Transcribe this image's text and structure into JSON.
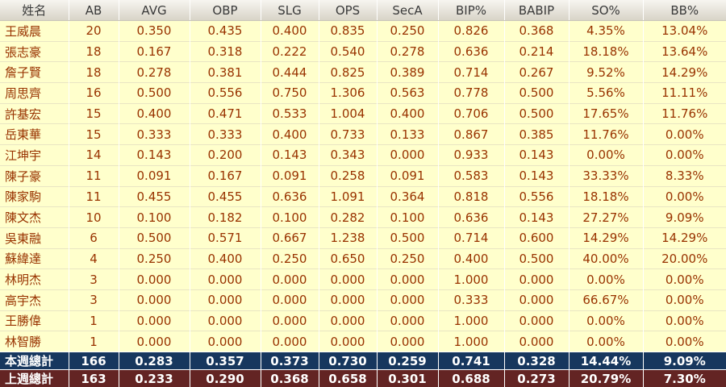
{
  "chart_data": {
    "type": "table",
    "columns": [
      "姓名",
      "AB",
      "AVG",
      "OBP",
      "SLG",
      "OPS",
      "SecA",
      "BIP%",
      "BABIP",
      "SO%",
      "BB%"
    ],
    "rows": [
      [
        "王威晨",
        "20",
        "0.350",
        "0.435",
        "0.400",
        "0.835",
        "0.250",
        "0.826",
        "0.368",
        "4.35%",
        "13.04%"
      ],
      [
        "張志豪",
        "18",
        "0.167",
        "0.318",
        "0.222",
        "0.540",
        "0.278",
        "0.636",
        "0.214",
        "18.18%",
        "13.64%"
      ],
      [
        "詹子賢",
        "18",
        "0.278",
        "0.381",
        "0.444",
        "0.825",
        "0.389",
        "0.714",
        "0.267",
        "9.52%",
        "14.29%"
      ],
      [
        "周思齊",
        "16",
        "0.500",
        "0.556",
        "0.750",
        "1.306",
        "0.563",
        "0.778",
        "0.500",
        "5.56%",
        "11.11%"
      ],
      [
        "許基宏",
        "15",
        "0.400",
        "0.471",
        "0.533",
        "1.004",
        "0.400",
        "0.706",
        "0.500",
        "17.65%",
        "11.76%"
      ],
      [
        "岳東華",
        "15",
        "0.333",
        "0.333",
        "0.400",
        "0.733",
        "0.133",
        "0.867",
        "0.385",
        "11.76%",
        "0.00%"
      ],
      [
        "江坤宇",
        "14",
        "0.143",
        "0.200",
        "0.143",
        "0.343",
        "0.000",
        "0.933",
        "0.143",
        "0.00%",
        "0.00%"
      ],
      [
        "陳子豪",
        "11",
        "0.091",
        "0.167",
        "0.091",
        "0.258",
        "0.091",
        "0.583",
        "0.143",
        "33.33%",
        "8.33%"
      ],
      [
        "陳家駒",
        "11",
        "0.455",
        "0.455",
        "0.636",
        "1.091",
        "0.364",
        "0.818",
        "0.556",
        "18.18%",
        "0.00%"
      ],
      [
        "陳文杰",
        "10",
        "0.100",
        "0.182",
        "0.100",
        "0.282",
        "0.100",
        "0.636",
        "0.143",
        "27.27%",
        "9.09%"
      ],
      [
        "吳東融",
        "6",
        "0.500",
        "0.571",
        "0.667",
        "1.238",
        "0.500",
        "0.714",
        "0.600",
        "14.29%",
        "14.29%"
      ],
      [
        "蘇緯達",
        "4",
        "0.250",
        "0.400",
        "0.250",
        "0.650",
        "0.250",
        "0.400",
        "0.500",
        "40.00%",
        "20.00%"
      ],
      [
        "林明杰",
        "3",
        "0.000",
        "0.000",
        "0.000",
        "0.000",
        "0.000",
        "1.000",
        "0.000",
        "0.00%",
        "0.00%"
      ],
      [
        "高宇杰",
        "3",
        "0.000",
        "0.000",
        "0.000",
        "0.000",
        "0.000",
        "0.333",
        "0.000",
        "66.67%",
        "0.00%"
      ],
      [
        "王勝偉",
        "1",
        "0.000",
        "0.000",
        "0.000",
        "0.000",
        "0.000",
        "1.000",
        "0.000",
        "0.00%",
        "0.00%"
      ],
      [
        "林智勝",
        "1",
        "0.000",
        "0.000",
        "0.000",
        "0.000",
        "0.000",
        "1.000",
        "0.000",
        "0.00%",
        "0.00%"
      ]
    ],
    "totals": [
      {
        "label": "本週總計",
        "values": [
          "166",
          "0.283",
          "0.357",
          "0.373",
          "0.730",
          "0.259",
          "0.741",
          "0.328",
          "14.44%",
          "9.09%"
        ]
      },
      {
        "label": "上週總計",
        "values": [
          "163",
          "0.233",
          "0.290",
          "0.368",
          "0.658",
          "0.301",
          "0.688",
          "0.273",
          "20.79%",
          "7.30%"
        ]
      }
    ]
  },
  "colors": {
    "header_bg_top": "#f7f5f0",
    "header_bg_bottom": "#d8d4c8",
    "header_text": "#3a3a3a",
    "row_bg": "#ffffcc",
    "row_text": "#993300",
    "grid_vertical": "#ffffff",
    "grid_horizontal": "#e9e5c3",
    "total_week_bg": "#17375e",
    "total_lastweek_bg": "#632423",
    "total_text": "#ffffff"
  }
}
